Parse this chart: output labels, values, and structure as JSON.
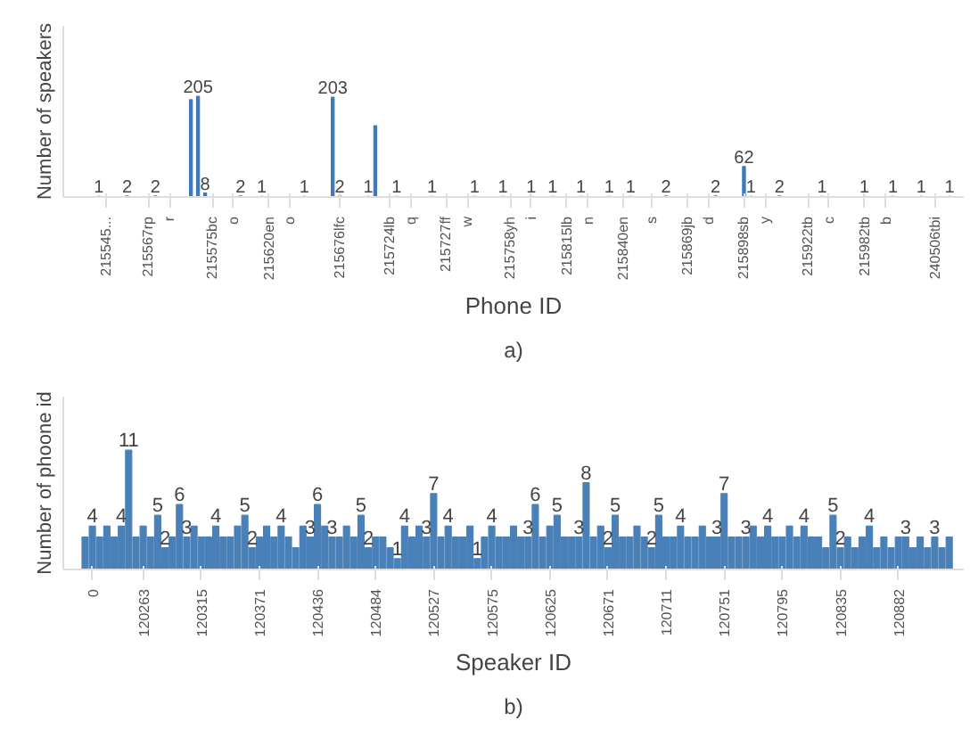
{
  "chart_data": [
    {
      "type": "bar",
      "xlabel": "Phone ID",
      "ylabel": "Number of speakers",
      "annotations": [
        "a)"
      ],
      "color": "#3f7ab8",
      "tick_labels": "x",
      "categories": [
        null,
        null,
        null,
        "215545...",
        null,
        null,
        null,
        null,
        null,
        "215567rp",
        null,
        null,
        "r",
        null,
        null,
        null,
        null,
        null,
        "215575bc",
        null,
        null,
        "o",
        null,
        null,
        null,
        null,
        "215620en",
        null,
        null,
        "o",
        null,
        null,
        null,
        null,
        null,
        null,
        "215676lfc",
        null,
        null,
        null,
        null,
        null,
        null,
        "215724lb",
        null,
        null,
        "q",
        null,
        null,
        null,
        null,
        "215727ff",
        null,
        null,
        "w",
        null,
        null,
        null,
        null,
        null,
        "215758yh",
        null,
        null,
        "i",
        null,
        null,
        null,
        null,
        "215815lb",
        null,
        null,
        "n",
        null,
        null,
        null,
        null,
        "215840en",
        null,
        null,
        null,
        "s",
        null,
        null,
        null,
        null,
        "215869jb",
        null,
        null,
        "d",
        null,
        null,
        null,
        null,
        "215898sb",
        null,
        null,
        "y",
        null,
        null,
        null,
        null,
        null,
        "215922tb",
        null,
        null,
        "c",
        null,
        null,
        null,
        null,
        "215982tb",
        null,
        null,
        "b",
        null,
        null,
        null,
        null,
        null,
        null,
        "240506tbi",
        null,
        null
      ],
      "values": [
        null,
        null,
        1,
        null,
        null,
        null,
        2,
        null,
        null,
        null,
        2,
        null,
        null,
        null,
        null,
        198,
        205,
        8,
        null,
        null,
        null,
        null,
        2,
        null,
        null,
        1,
        null,
        null,
        null,
        null,
        null,
        1,
        null,
        null,
        null,
        203,
        2,
        null,
        null,
        null,
        1,
        145,
        null,
        null,
        1,
        null,
        null,
        null,
        null,
        1,
        null,
        null,
        null,
        null,
        null,
        1,
        null,
        null,
        null,
        1,
        null,
        null,
        null,
        1,
        null,
        null,
        1,
        null,
        null,
        null,
        1,
        null,
        null,
        null,
        1,
        null,
        null,
        1,
        null,
        null,
        null,
        null,
        2,
        null,
        null,
        null,
        null,
        null,
        null,
        2,
        null,
        null,
        null,
        62,
        1,
        null,
        null,
        null,
        2,
        null,
        null,
        null,
        null,
        null,
        1,
        null,
        null,
        null,
        null,
        null,
        1,
        null,
        null,
        null,
        1,
        null,
        null,
        null,
        1,
        null,
        null,
        null,
        1
      ],
      "value_labels": [
        null,
        null,
        "1",
        null,
        null,
        null,
        "2",
        null,
        null,
        null,
        "2",
        null,
        null,
        null,
        null,
        null,
        "205",
        "8",
        null,
        null,
        null,
        null,
        "2",
        null,
        null,
        "1",
        null,
        null,
        null,
        null,
        null,
        "1",
        null,
        null,
        null,
        "203",
        "2",
        null,
        null,
        null,
        "1",
        null,
        null,
        null,
        "1",
        null,
        null,
        null,
        null,
        "1",
        null,
        null,
        null,
        null,
        null,
        "1",
        null,
        null,
        null,
        "1",
        null,
        null,
        null,
        "1",
        null,
        null,
        "1",
        null,
        null,
        null,
        "1",
        null,
        null,
        null,
        "1",
        null,
        null,
        "1",
        null,
        null,
        null,
        null,
        "2",
        null,
        null,
        null,
        null,
        null,
        null,
        "2",
        null,
        null,
        null,
        "62",
        "1",
        null,
        null,
        null,
        "2",
        null,
        null,
        null,
        null,
        null,
        "1",
        null,
        null,
        null,
        null,
        null,
        "1",
        null,
        null,
        null,
        "1",
        null,
        null,
        null,
        "1",
        null,
        null,
        null,
        "1"
      ],
      "grid": false
    },
    {
      "type": "bar",
      "xlabel": "Speaker ID",
      "ylabel": "Number of phoone id",
      "annotations": [
        "b)"
      ],
      "color": "#4a80b8",
      "tick_labels": "x",
      "categories": [
        null,
        "0",
        null,
        null,
        null,
        null,
        null,
        null,
        "120263",
        null,
        null,
        null,
        null,
        null,
        null,
        null,
        "120315",
        null,
        null,
        null,
        null,
        null,
        null,
        null,
        "120371",
        null,
        null,
        null,
        null,
        null,
        null,
        null,
        "120436",
        null,
        null,
        null,
        null,
        null,
        null,
        null,
        "120484",
        null,
        null,
        null,
        null,
        null,
        null,
        null,
        "120527",
        null,
        null,
        null,
        null,
        null,
        null,
        null,
        "120575",
        null,
        null,
        null,
        null,
        null,
        null,
        null,
        "120625",
        null,
        null,
        null,
        null,
        null,
        null,
        null,
        "120671",
        null,
        null,
        null,
        null,
        null,
        null,
        null,
        "120711",
        null,
        null,
        null,
        null,
        null,
        null,
        null,
        "120751",
        null,
        null,
        null,
        null,
        null,
        null,
        null,
        "120795",
        null,
        null,
        null,
        null,
        null,
        null,
        null,
        "120835",
        null,
        null,
        null,
        null,
        null,
        null,
        null,
        "120882",
        null,
        null,
        null,
        null,
        null,
        null,
        null
      ],
      "values": [
        3,
        4,
        3,
        4,
        3,
        4,
        11,
        3,
        4,
        3,
        5,
        2,
        3,
        6,
        3,
        4,
        3,
        3,
        4,
        3,
        3,
        4,
        5,
        2,
        3,
        4,
        3,
        4,
        3,
        2,
        4,
        3,
        6,
        4,
        3,
        3,
        4,
        3,
        5,
        2,
        3,
        3,
        2,
        1,
        4,
        3,
        4,
        3,
        7,
        3,
        4,
        3,
        3,
        4,
        1,
        3,
        4,
        3,
        3,
        4,
        3,
        3,
        6,
        3,
        4,
        5,
        3,
        3,
        3,
        8,
        3,
        4,
        2,
        5,
        3,
        3,
        4,
        3,
        2,
        5,
        3,
        3,
        4,
        3,
        3,
        4,
        3,
        3,
        7,
        3,
        3,
        3,
        4,
        3,
        4,
        3,
        3,
        4,
        3,
        4,
        3,
        3,
        2,
        5,
        2,
        3,
        2,
        3,
        4,
        2,
        3,
        2,
        3,
        3,
        2,
        3,
        2,
        3,
        2,
        3
      ],
      "value_labels": [
        null,
        "4",
        null,
        null,
        null,
        "4",
        "11",
        null,
        null,
        null,
        "5",
        "2",
        null,
        "6",
        "3",
        null,
        null,
        null,
        "4",
        null,
        null,
        null,
        "5",
        "2",
        null,
        null,
        null,
        "4",
        null,
        null,
        null,
        "3",
        "6",
        null,
        "3",
        null,
        null,
        null,
        "5",
        "2",
        null,
        null,
        null,
        "1",
        "4",
        null,
        null,
        "3",
        "7",
        null,
        "4",
        null,
        null,
        null,
        "1",
        null,
        "4",
        null,
        null,
        null,
        null,
        "3",
        "6",
        null,
        null,
        "5",
        null,
        null,
        "3",
        "8",
        null,
        null,
        "2",
        "5",
        null,
        null,
        null,
        null,
        "2",
        "5",
        null,
        null,
        "4",
        null,
        null,
        null,
        null,
        "3",
        "7",
        null,
        null,
        "3",
        null,
        null,
        "4",
        null,
        null,
        null,
        null,
        "4",
        null,
        null,
        null,
        "5",
        "2",
        null,
        null,
        null,
        "4",
        null,
        null,
        null,
        null,
        "3",
        null,
        null,
        null,
        "3",
        null,
        null
      ],
      "grid": false
    }
  ]
}
